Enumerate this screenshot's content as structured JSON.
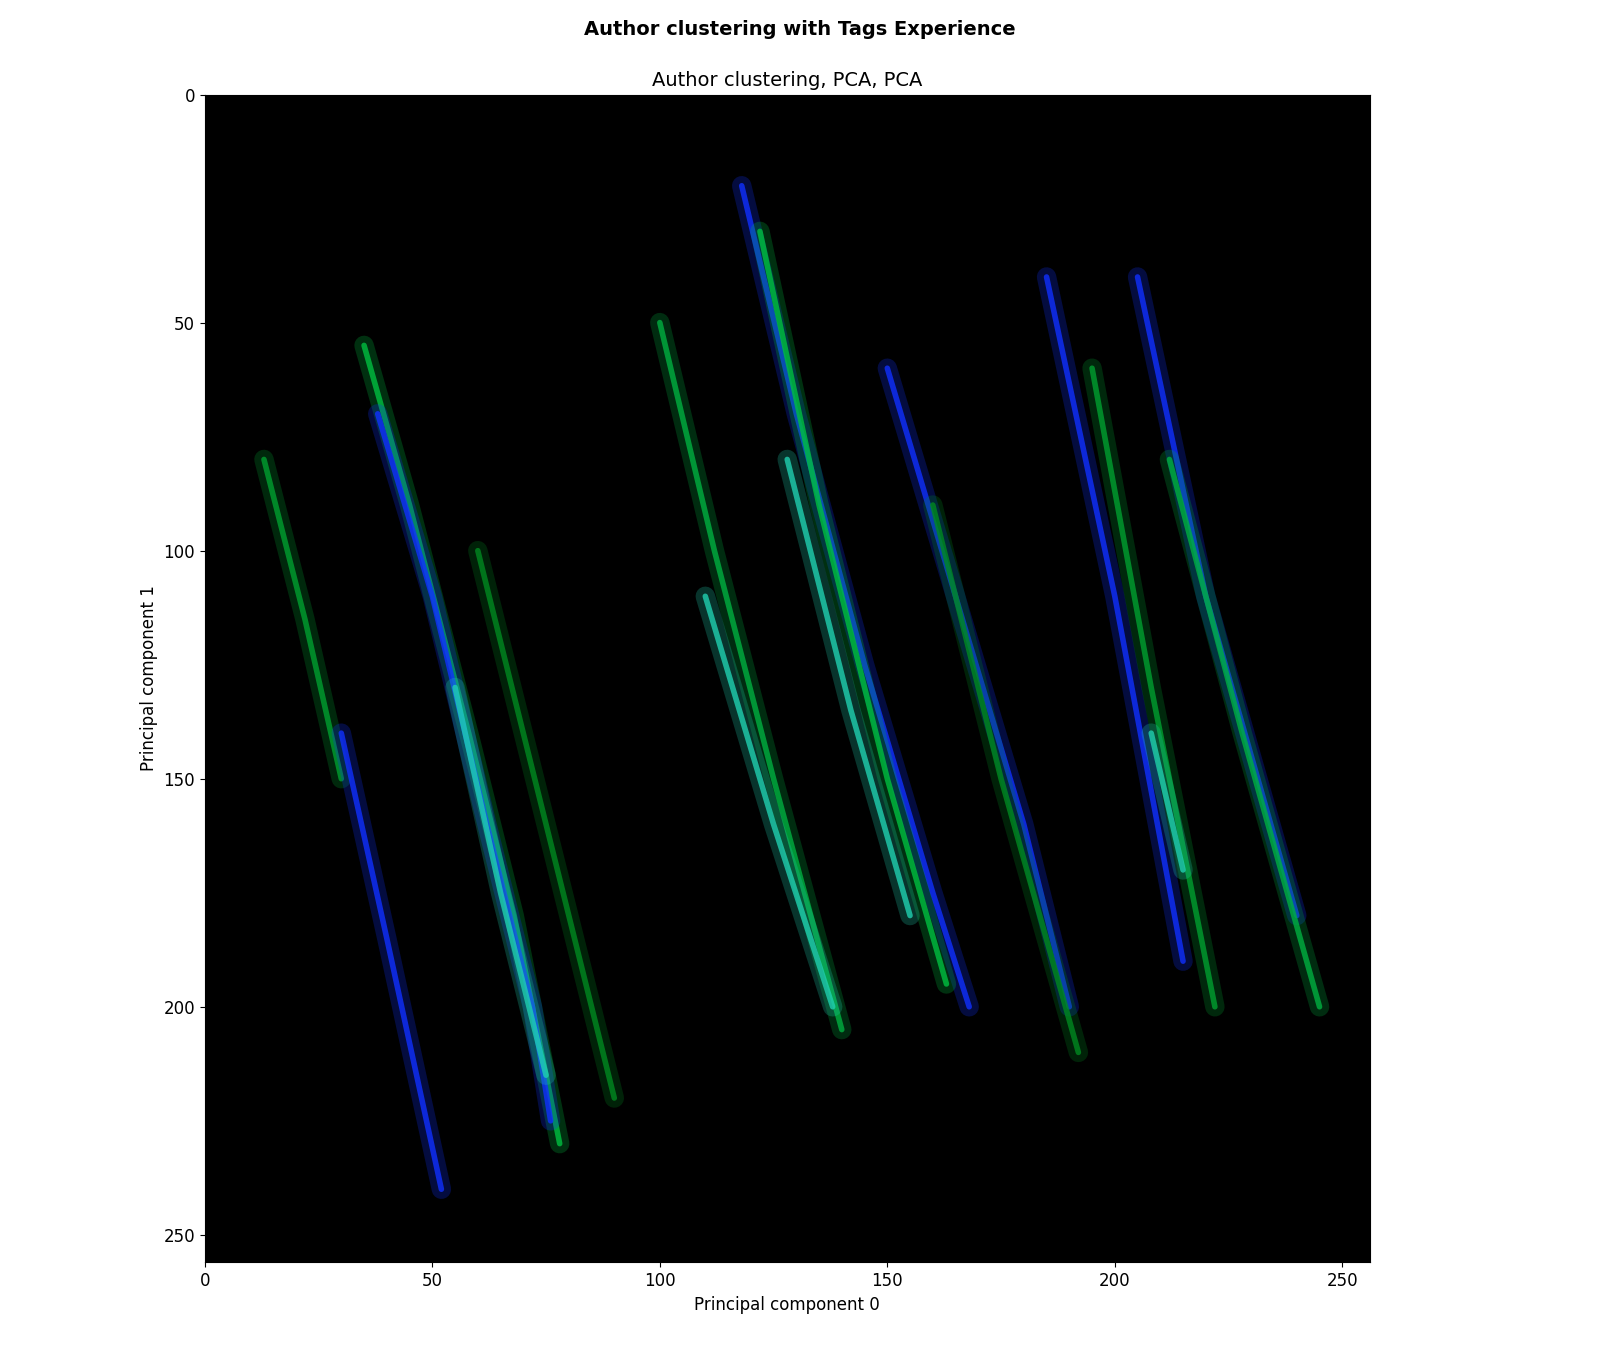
{
  "chart_data": {
    "type": "line",
    "title": "Author clustering with Tags Experience",
    "subtitle": "Author clustering, PCA, PCA",
    "x_label": "Principal component 0",
    "y_label": "Principal component 1",
    "xlim": [
      0,
      256
    ],
    "ylim": [
      256,
      0
    ],
    "xticks": [
      0,
      50,
      100,
      150,
      200,
      250
    ],
    "yticks": [
      0,
      50,
      100,
      150,
      200,
      250
    ],
    "grid": false,
    "series": [
      {
        "color": "#00a030",
        "x": [
          13,
          22,
          30
        ],
        "values": [
          80,
          115,
          150
        ]
      },
      {
        "color": "#1030ff",
        "x": [
          30,
          40,
          52
        ],
        "values": [
          140,
          185,
          240
        ]
      },
      {
        "color": "#00c040",
        "x": [
          35,
          45,
          58,
          68,
          78
        ],
        "values": [
          55,
          90,
          140,
          180,
          230
        ]
      },
      {
        "color": "#1030ff",
        "x": [
          38,
          50,
          62,
          72,
          76
        ],
        "values": [
          70,
          110,
          160,
          200,
          225
        ]
      },
      {
        "color": "#20d0b0",
        "x": [
          55,
          65,
          75
        ],
        "values": [
          130,
          175,
          215
        ]
      },
      {
        "color": "#008a20",
        "x": [
          60,
          75,
          90
        ],
        "values": [
          100,
          160,
          220
        ]
      },
      {
        "color": "#00b040",
        "x": [
          100,
          112,
          125,
          140
        ],
        "values": [
          50,
          100,
          150,
          205
        ]
      },
      {
        "color": "#20d0b0",
        "x": [
          110,
          125,
          138
        ],
        "values": [
          110,
          160,
          200
        ]
      },
      {
        "color": "#1030ff",
        "x": [
          118,
          130,
          145,
          160,
          168
        ],
        "values": [
          20,
          70,
          125,
          175,
          200
        ]
      },
      {
        "color": "#00c040",
        "x": [
          122,
          135,
          150,
          163
        ],
        "values": [
          30,
          90,
          150,
          195
        ]
      },
      {
        "color": "#20d0b0",
        "x": [
          128,
          142,
          155
        ],
        "values": [
          80,
          135,
          180
        ]
      },
      {
        "color": "#1030ff",
        "x": [
          150,
          165,
          180,
          190
        ],
        "values": [
          60,
          110,
          160,
          200
        ]
      },
      {
        "color": "#008a20",
        "x": [
          160,
          175,
          192
        ],
        "values": [
          90,
          150,
          210
        ]
      },
      {
        "color": "#1030ff",
        "x": [
          185,
          200,
          215
        ],
        "values": [
          40,
          110,
          190
        ]
      },
      {
        "color": "#00a030",
        "x": [
          195,
          208,
          222
        ],
        "values": [
          60,
          130,
          200
        ]
      },
      {
        "color": "#1030ff",
        "x": [
          205,
          220,
          240
        ],
        "values": [
          40,
          110,
          180
        ]
      },
      {
        "color": "#00b040",
        "x": [
          212,
          228,
          245
        ],
        "values": [
          80,
          140,
          200
        ]
      },
      {
        "color": "#20d0b0",
        "x": [
          208,
          215
        ],
        "values": [
          140,
          170
        ]
      }
    ]
  }
}
